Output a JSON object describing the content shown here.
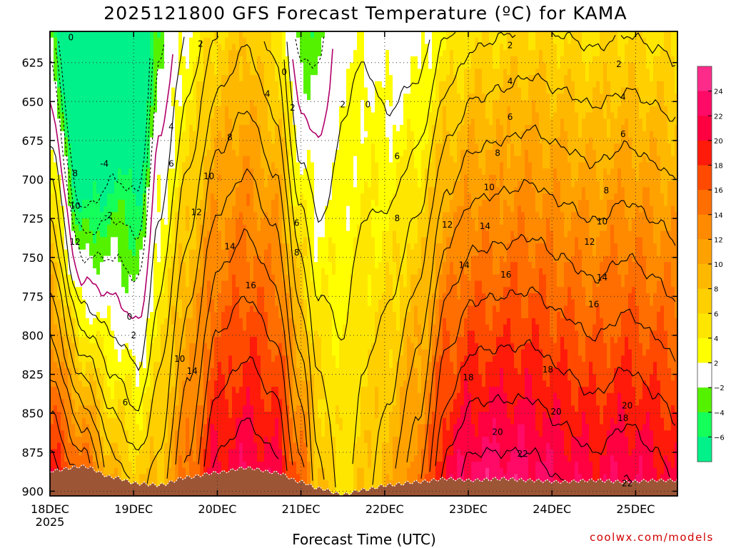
{
  "chart_data": {
    "type": "contour",
    "title": "2025121800 GFS Forecast Temperature (ºC) for KAMA",
    "xlabel": "Forecast Time (UTC)",
    "ylabel": "Pressure (hPa)",
    "yaxis_inverted": true,
    "ylim": [
      903,
      605
    ],
    "y_ticks": [
      "625",
      "650",
      "675",
      "700",
      "725",
      "750",
      "775",
      "800",
      "825",
      "850",
      "875",
      "900"
    ],
    "xlim": [
      0,
      7.5
    ],
    "x_ticks": [
      {
        "label": "18DEC",
        "sub": "2025",
        "day": 0
      },
      {
        "label": "19DEC",
        "day": 1
      },
      {
        "label": "20DEC",
        "day": 2
      },
      {
        "label": "21DEC",
        "day": 3
      },
      {
        "label": "22DEC",
        "day": 4
      },
      {
        "label": "23DEC",
        "day": 5
      },
      {
        "label": "24DEC",
        "day": 6
      },
      {
        "label": "25DEC",
        "day": 7
      }
    ],
    "colorbar_ticks": [
      "24",
      "22",
      "20",
      "18",
      "16",
      "14",
      "12",
      "10",
      "8",
      "6",
      "4",
      "2",
      "−2",
      "−4",
      "−6"
    ],
    "colorbar_colors": [
      "#ff2b8a",
      "#ff0a66",
      "#ff0040",
      "#ff1a0a",
      "#ff4a00",
      "#ff6e00",
      "#ff8a00",
      "#ffa200",
      "#ffb800",
      "#ffcf00",
      "#ffe600",
      "#ffff00",
      "#ffffff",
      "#55f200",
      "#15ff5a",
      "#00f08a"
    ],
    "contour_levels": [
      -6,
      -4,
      -2,
      0,
      2,
      4,
      6,
      8,
      10,
      12,
      14,
      16,
      18,
      20,
      22,
      24
    ],
    "profile_times": [
      0,
      0.4,
      0.75,
      1.05,
      1.3,
      1.65,
      2.0,
      2.35,
      2.7,
      3.0,
      3.2,
      3.5,
      3.75,
      4.05,
      4.4,
      4.75,
      5.05,
      5.4,
      5.75,
      6.1,
      6.5,
      6.9,
      7.25,
      7.5
    ],
    "profiles": [
      {
        "t": 0.0,
        "surface_hPa": 887,
        "temp_at_875": 18,
        "lapse_per_25hPa": 2.0
      },
      {
        "t": 0.4,
        "surface_hPa": 884,
        "temp_at_875": 14,
        "lapse_per_25hPa": 3.2
      },
      {
        "t": 0.75,
        "surface_hPa": 891,
        "temp_at_875": 8,
        "lapse_per_25hPa": 2.0
      },
      {
        "t": 1.05,
        "surface_hPa": 895,
        "temp_at_875": 6,
        "lapse_per_25hPa": 1.8
      },
      {
        "t": 1.3,
        "surface_hPa": 896,
        "temp_at_875": 8,
        "lapse_per_25hPa": 1.0
      },
      {
        "t": 1.65,
        "surface_hPa": 891,
        "temp_at_875": 14,
        "lapse_per_25hPa": 1.1
      },
      {
        "t": 2.0,
        "surface_hPa": 888,
        "temp_at_875": 20,
        "lapse_per_25hPa": 1.3
      },
      {
        "t": 2.35,
        "surface_hPa": 885,
        "temp_at_875": 21,
        "lapse_per_25hPa": 1.25
      },
      {
        "t": 2.7,
        "surface_hPa": 888,
        "temp_at_875": 20,
        "lapse_per_25hPa": 1.4
      },
      {
        "t": 3.0,
        "surface_hPa": 894,
        "temp_at_875": 14,
        "lapse_per_25hPa": 1.6
      },
      {
        "t": 3.2,
        "surface_hPa": 898,
        "temp_at_875": 8,
        "lapse_per_25hPa": 1.0
      },
      {
        "t": 3.5,
        "surface_hPa": 902,
        "temp_at_875": 5,
        "lapse_per_25hPa": 0.35
      },
      {
        "t": 3.75,
        "surface_hPa": 899,
        "temp_at_875": 7,
        "lapse_per_25hPa": 0.5
      },
      {
        "t": 4.05,
        "surface_hPa": 896,
        "temp_at_875": 9,
        "lapse_per_25hPa": 0.8
      },
      {
        "t": 4.4,
        "surface_hPa": 894,
        "temp_at_875": 13,
        "lapse_per_25hPa": 1.15
      },
      {
        "t": 4.75,
        "surface_hPa": 892,
        "temp_at_875": 20,
        "lapse_per_25hPa": 1.5
      },
      {
        "t": 5.05,
        "surface_hPa": 893,
        "temp_at_875": 22,
        "lapse_per_25hPa": 1.55
      },
      {
        "t": 5.4,
        "surface_hPa": 892,
        "temp_at_875": 22,
        "lapse_per_25hPa": 1.5
      },
      {
        "t": 5.75,
        "surface_hPa": 893,
        "temp_at_875": 22,
        "lapse_per_25hPa": 1.45
      },
      {
        "t": 6.1,
        "surface_hPa": 894,
        "temp_at_875": 21,
        "lapse_per_25hPa": 1.4
      },
      {
        "t": 6.5,
        "surface_hPa": 893,
        "temp_at_875": 20,
        "lapse_per_25hPa": 1.35
      },
      {
        "t": 6.9,
        "surface_hPa": 894,
        "temp_at_875": 21,
        "lapse_per_25hPa": 1.4
      },
      {
        "t": 7.25,
        "surface_hPa": 893,
        "temp_at_875": 20,
        "lapse_per_25hPa": 1.35
      },
      {
        "t": 7.5,
        "surface_hPa": 893,
        "temp_at_875": 19,
        "lapse_per_25hPa": 1.3
      }
    ],
    "contour_labels": [
      {
        "text": "0",
        "t": 0.25,
        "p": 609
      },
      {
        "text": "0",
        "t": 2.8,
        "p": 631
      },
      {
        "text": "0",
        "t": 3.8,
        "p": 652
      },
      {
        "text": "0",
        "t": 0.95,
        "p": 788
      },
      {
        "text": "2",
        "t": 1.8,
        "p": 613
      },
      {
        "text": "2",
        "t": 2.9,
        "p": 654
      },
      {
        "text": "2",
        "t": 3.5,
        "p": 652
      },
      {
        "text": "2",
        "t": 5.5,
        "p": 614
      },
      {
        "text": "2",
        "t": 6.8,
        "p": 626
      },
      {
        "text": "2",
        "t": 1.0,
        "p": 800
      },
      {
        "text": "4",
        "t": 2.6,
        "p": 645
      },
      {
        "text": "4",
        "t": 5.5,
        "p": 637
      },
      {
        "text": "4",
        "t": 6.85,
        "p": 647
      },
      {
        "text": "4",
        "t": 1.45,
        "p": 666
      },
      {
        "text": "6",
        "t": 1.45,
        "p": 690
      },
      {
        "text": "6",
        "t": 4.15,
        "p": 685
      },
      {
        "text": "6",
        "t": 5.5,
        "p": 660
      },
      {
        "text": "6",
        "t": 6.85,
        "p": 671
      },
      {
        "text": "6",
        "t": 2.95,
        "p": 728
      },
      {
        "text": "6",
        "t": 0.9,
        "p": 843
      },
      {
        "text": "-4",
        "t": 0.65,
        "p": 690
      },
      {
        "text": "-2",
        "t": 0.7,
        "p": 723
      },
      {
        "text": "8",
        "t": 2.15,
        "p": 673
      },
      {
        "text": "8",
        "t": 5.35,
        "p": 683
      },
      {
        "text": "8",
        "t": 6.65,
        "p": 707
      },
      {
        "text": "8",
        "t": 0.3,
        "p": 696
      },
      {
        "text": "8",
        "t": 4.15,
        "p": 725
      },
      {
        "text": "8",
        "t": 2.95,
        "p": 747
      },
      {
        "text": "10",
        "t": 1.9,
        "p": 698
      },
      {
        "text": "10",
        "t": 5.25,
        "p": 705
      },
      {
        "text": "10",
        "t": 6.6,
        "p": 727
      },
      {
        "text": "10",
        "t": 0.3,
        "p": 717
      },
      {
        "text": "10",
        "t": 1.55,
        "p": 815
      },
      {
        "text": "12",
        "t": 1.75,
        "p": 721
      },
      {
        "text": "12",
        "t": 4.75,
        "p": 729
      },
      {
        "text": "12",
        "t": 6.45,
        "p": 740
      },
      {
        "text": "12",
        "t": 0.3,
        "p": 740
      },
      {
        "text": "14",
        "t": 2.15,
        "p": 743
      },
      {
        "text": "14",
        "t": 5.2,
        "p": 730
      },
      {
        "text": "14",
        "t": 4.95,
        "p": 755
      },
      {
        "text": "14",
        "t": 6.6,
        "p": 763
      },
      {
        "text": "14",
        "t": 1.7,
        "p": 823
      },
      {
        "text": "16",
        "t": 2.4,
        "p": 768
      },
      {
        "text": "16",
        "t": 5.45,
        "p": 761
      },
      {
        "text": "16",
        "t": 6.5,
        "p": 780
      },
      {
        "text": "18",
        "t": 5.0,
        "p": 827
      },
      {
        "text": "18",
        "t": 5.95,
        "p": 822
      },
      {
        "text": "18",
        "t": 6.85,
        "p": 853
      },
      {
        "text": "20",
        "t": 6.05,
        "p": 849
      },
      {
        "text": "20",
        "t": 6.9,
        "p": 845
      },
      {
        "text": "20",
        "t": 5.35,
        "p": 862
      },
      {
        "text": "22",
        "t": 5.65,
        "p": 876
      },
      {
        "text": "22",
        "t": 6.9,
        "p": 895
      }
    ],
    "credit": "coolwx.com/models"
  }
}
